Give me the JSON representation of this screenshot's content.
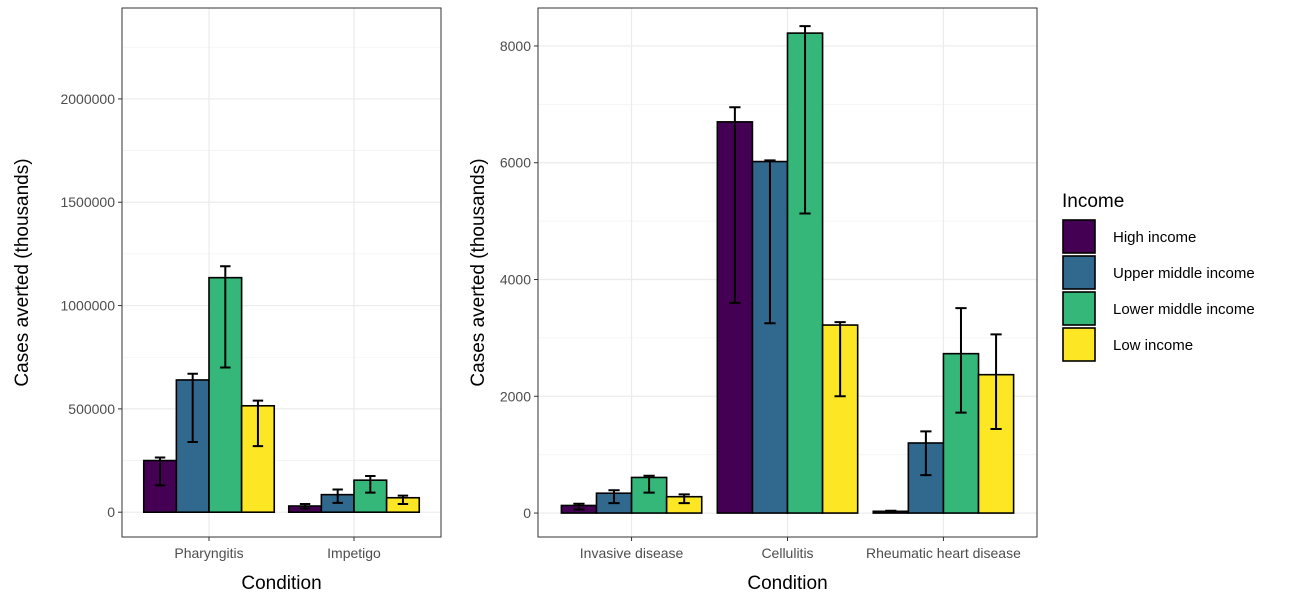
{
  "legend": {
    "title": "Income",
    "entries": [
      {
        "label": "High income",
        "color": "#440154"
      },
      {
        "label": "Upper middle income",
        "color": "#31688e"
      },
      {
        "label": "Lower middle income",
        "color": "#35b779"
      },
      {
        "label": "Low income",
        "color": "#fde725"
      }
    ]
  },
  "chart_data": [
    {
      "type": "bar",
      "xlabel": "Condition",
      "ylabel": "Cases averted (thousands)",
      "ylim": [
        -120000,
        2440000
      ],
      "yticks": [
        0,
        500000,
        1000000,
        1500000,
        2000000
      ],
      "ytick_labels": [
        "0",
        "500000",
        "1000000",
        "1500000",
        "2000000"
      ],
      "grid": true,
      "categories": [
        "Pharyngitis",
        "Impetigo"
      ],
      "series": [
        {
          "name": "High income",
          "color": "#440154",
          "values": [
            250000,
            30000
          ],
          "error_low": [
            130000,
            18000
          ],
          "error_high": [
            265000,
            40000
          ]
        },
        {
          "name": "Upper middle income",
          "color": "#31688e",
          "values": [
            640000,
            85000
          ],
          "error_low": [
            340000,
            45000
          ],
          "error_high": [
            670000,
            110000
          ]
        },
        {
          "name": "Lower middle income",
          "color": "#35b779",
          "values": [
            1135000,
            155000
          ],
          "error_low": [
            700000,
            95000
          ],
          "error_high": [
            1190000,
            175000
          ]
        },
        {
          "name": "Low income",
          "color": "#fde725",
          "values": [
            515000,
            70000
          ],
          "error_low": [
            320000,
            40000
          ],
          "error_high": [
            540000,
            80000
          ]
        }
      ]
    },
    {
      "type": "bar",
      "xlabel": "Condition",
      "ylabel": "Cases averted (thousands)",
      "ylim": [
        -410,
        8650
      ],
      "yticks": [
        0,
        2000,
        4000,
        6000,
        8000
      ],
      "ytick_labels": [
        "0",
        "2000",
        "4000",
        "6000",
        "8000"
      ],
      "grid": true,
      "categories": [
        "Invasive disease",
        "Cellulitis",
        "Rheumatic heart disease"
      ],
      "series": [
        {
          "name": "High income",
          "color": "#440154",
          "values": [
            130,
            6700,
            30
          ],
          "error_low": [
            60,
            3600,
            10
          ],
          "error_high": [
            160,
            6950,
            40
          ]
        },
        {
          "name": "Upper middle income",
          "color": "#31688e",
          "values": [
            340,
            6020,
            1200
          ],
          "error_low": [
            170,
            3250,
            650
          ],
          "error_high": [
            390,
            6040,
            1400
          ]
        },
        {
          "name": "Lower middle income",
          "color": "#35b779",
          "values": [
            610,
            8220,
            2730
          ],
          "error_low": [
            350,
            5130,
            1720
          ],
          "error_high": [
            640,
            8340,
            3510
          ]
        },
        {
          "name": "Low income",
          "color": "#fde725",
          "values": [
            280,
            3220,
            2370
          ],
          "error_low": [
            170,
            2000,
            1440
          ],
          "error_high": [
            320,
            3270,
            3060
          ]
        }
      ]
    }
  ]
}
